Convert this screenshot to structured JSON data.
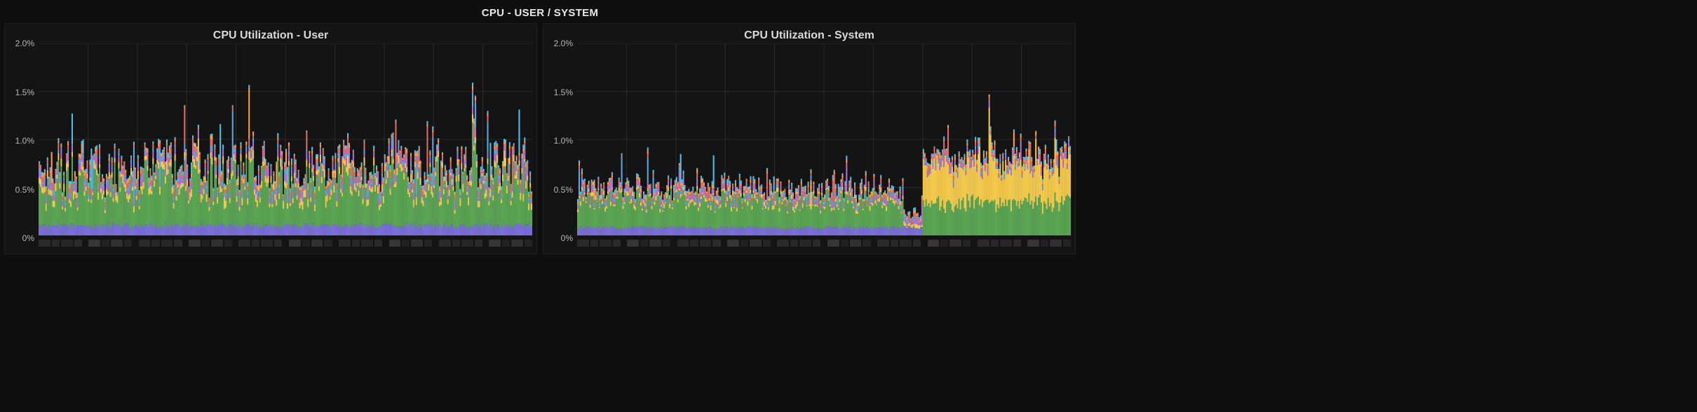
{
  "row_title": "CPU - USER / SYSTEM",
  "colors": {
    "bg": "#0f0f0f",
    "panel_bg": "#141414",
    "grid": "#2a2a2a",
    "axis_text": "#b8b8b8",
    "title_text": "#d8d9da"
  },
  "series_colors": [
    "#5aa454",
    "#f2c94c",
    "#bb6bd9",
    "#5aa9e6",
    "#e26a6a",
    "#7a6fd9",
    "#ff9f40",
    "#4fc1e9"
  ],
  "panels": [
    {
      "id": "user",
      "title": "CPU Utilization - User",
      "y": {
        "min": 0.0,
        "max": 2.0,
        "ticks": [
          0.0,
          0.5,
          1.0,
          1.5,
          2.0
        ],
        "tick_labels": [
          "0%",
          "0.5%",
          "1.0%",
          "1.5%",
          "2.0%"
        ]
      },
      "x": {
        "tick_count": 10,
        "tick_placeholder_colors": [
          "#3a3a3a",
          "#2a2a2a",
          "#343434",
          "#2e2e2e"
        ]
      },
      "chart": {
        "type": "stacked-bar",
        "n_points": 360,
        "seed": 11,
        "base": [
          0.1,
          0.42,
          0.06,
          0.05,
          0.03,
          0.04,
          0.02,
          0.02
        ],
        "noise": [
          0.03,
          0.28,
          0.03,
          0.04,
          0.02,
          0.04,
          0.02,
          0.02
        ],
        "spike_rate": 0.1,
        "spike_amp": 0.55,
        "big_spikes": [
          {
            "i": 316,
            "series": 1,
            "value": 1.1
          },
          {
            "i": 318,
            "series": 1,
            "value": 0.85
          }
        ]
      }
    },
    {
      "id": "system",
      "title": "CPU Utilization - System",
      "y": {
        "min": 0.0,
        "max": 2.0,
        "ticks": [
          0.0,
          0.5,
          1.0,
          1.5,
          2.0
        ],
        "tick_labels": [
          "0%",
          "0.5%",
          "1.0%",
          "1.5%",
          "2.0%"
        ]
      },
      "x": {
        "tick_count": 10,
        "tick_placeholder_colors": [
          "#3a3a3a",
          "#2a2a2a",
          "#343434",
          "#2e2e2e"
        ]
      },
      "chart": {
        "type": "stacked-bar",
        "n_points": 360,
        "seed": 23,
        "base": [
          0.08,
          0.28,
          0.03,
          0.03,
          0.02,
          0.03,
          0.02,
          0.02
        ],
        "noise": [
          0.02,
          0.12,
          0.02,
          0.03,
          0.02,
          0.03,
          0.02,
          0.02
        ],
        "spike_rate": 0.06,
        "spike_amp": 0.35,
        "dips": [
          {
            "from": 238,
            "to": 252,
            "series": 1,
            "factor": 0.15
          }
        ],
        "yellow_region": {
          "from": 252,
          "to": 360,
          "series": 1,
          "add": 0.22,
          "noise": 0.22
        },
        "big_spikes": [
          {
            "i": 300,
            "series": 1,
            "value": 1.0
          },
          {
            "i": 268,
            "series": 1,
            "value": 0.6
          },
          {
            "i": 334,
            "series": 1,
            "value": 0.6
          }
        ]
      }
    }
  ]
}
